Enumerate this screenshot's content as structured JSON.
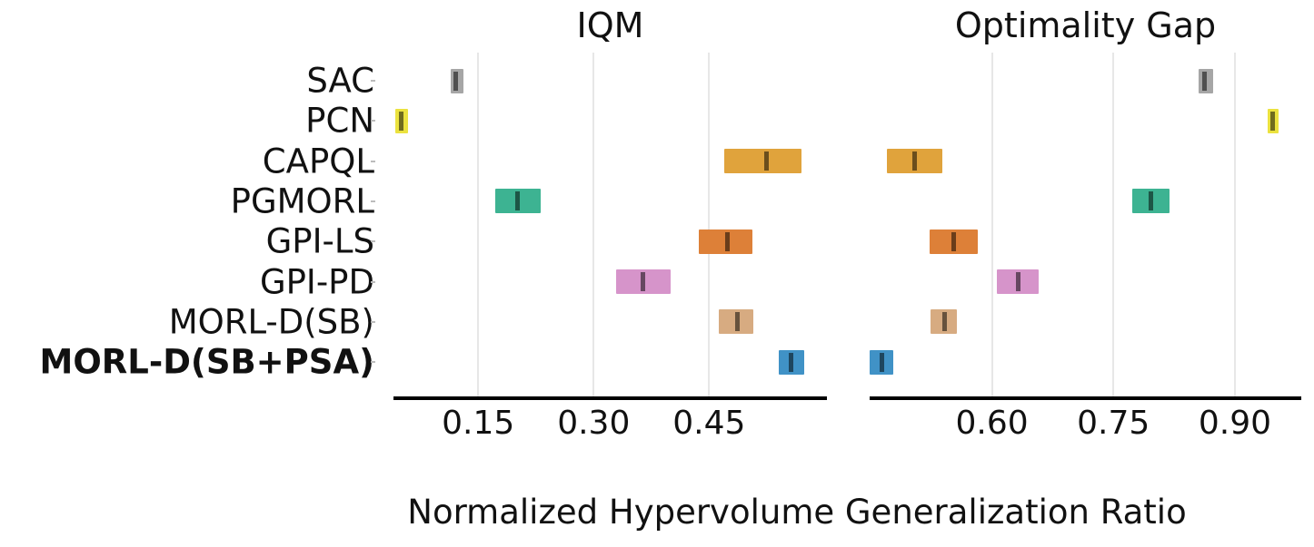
{
  "figure": {
    "xlabel": "Normalized Hypervolume Generalization Ratio"
  },
  "chart_data": {
    "type": "bar",
    "subtype": "horizontal_interval_estimates",
    "title": "",
    "xlabel": "Normalized Hypervolume Generalization Ratio",
    "grid": true,
    "legend_position": "none",
    "categories": [
      "SAC",
      "PCN",
      "CAPQL",
      "PGMORL",
      "GPI-LS",
      "GPI-PD",
      "MORL-D(SB)",
      "MORL-D(SB+PSA)"
    ],
    "bold_category": "MORL-D(SB+PSA)",
    "bar_colors": [
      "#a6a6a6",
      "#ebe23f",
      "#e0a33c",
      "#3db392",
      "#dd8038",
      "#d694ca",
      "#d7ab81",
      "#4092c6"
    ],
    "estimate_line_color": "rgba(0,0,0,0.52)",
    "subplots": [
      {
        "title": "IQM",
        "xlim": [
          0.04,
          0.603
        ],
        "xticks": [
          0.15,
          0.3,
          0.45
        ],
        "series": [
          {
            "name": "SAC",
            "interval": [
              0.114,
              0.131
            ],
            "estimate": 0.121
          },
          {
            "name": "PCN",
            "interval": [
              0.042,
              0.059
            ],
            "estimate": 0.05
          },
          {
            "name": "CAPQL",
            "interval": [
              0.47,
              0.57
            ],
            "estimate": 0.524
          },
          {
            "name": "PGMORL",
            "interval": [
              0.172,
              0.231
            ],
            "estimate": 0.201
          },
          {
            "name": "GPI-LS",
            "interval": [
              0.436,
              0.506
            ],
            "estimate": 0.474
          },
          {
            "name": "GPI-PD",
            "interval": [
              0.329,
              0.4
            ],
            "estimate": 0.364
          },
          {
            "name": "MORL-D(SB)",
            "interval": [
              0.463,
              0.507
            ],
            "estimate": 0.487
          },
          {
            "name": "MORL-D(SB+PSA)",
            "interval": [
              0.54,
              0.573
            ],
            "estimate": 0.556
          }
        ]
      },
      {
        "title": "Optimality Gap",
        "xlim": [
          0.449,
          0.982
        ],
        "xticks": [
          0.6,
          0.75,
          0.9
        ],
        "series": [
          {
            "name": "SAC",
            "interval": [
              0.855,
              0.873
            ],
            "estimate": 0.863
          },
          {
            "name": "PCN",
            "interval": [
              0.941,
              0.954
            ],
            "estimate": 0.947
          },
          {
            "name": "CAPQL",
            "interval": [
              0.47,
              0.539
            ],
            "estimate": 0.504
          },
          {
            "name": "PGMORL",
            "interval": [
              0.773,
              0.819
            ],
            "estimate": 0.796
          },
          {
            "name": "GPI-LS",
            "interval": [
              0.523,
              0.582
            ],
            "estimate": 0.553
          },
          {
            "name": "GPI-PD",
            "interval": [
              0.606,
              0.658
            ],
            "estimate": 0.632
          },
          {
            "name": "MORL-D(SB)",
            "interval": [
              0.524,
              0.557
            ],
            "estimate": 0.542
          },
          {
            "name": "MORL-D(SB+PSA)",
            "interval": [
              0.449,
              0.478
            ],
            "estimate": 0.464
          }
        ]
      }
    ]
  }
}
